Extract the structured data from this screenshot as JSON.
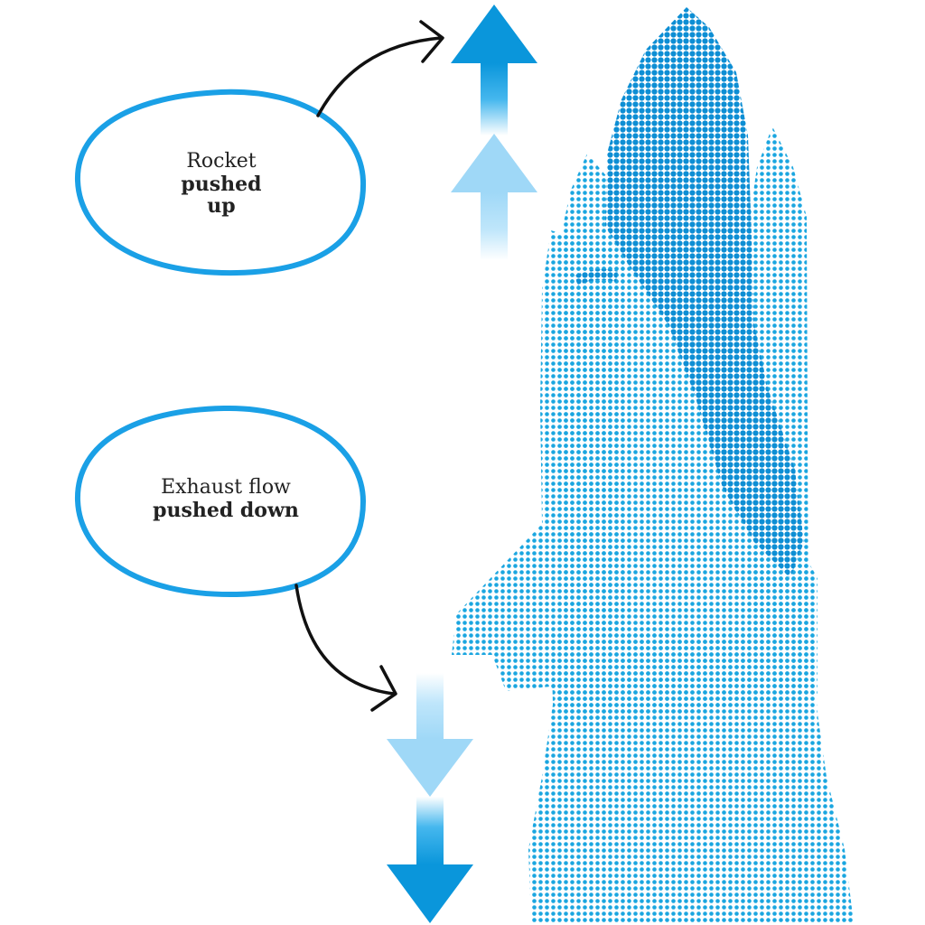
{
  "callouts": {
    "top": {
      "line1": "Rocket",
      "line2": "pushed",
      "line3": "up"
    },
    "bottom": {
      "line1": "Exhaust flow",
      "line2": "pushed down"
    }
  },
  "colors": {
    "rocket_dots": "#1ba6e0",
    "rocket_dark": "#0d8ed4",
    "bubble_outline": "#1aa0e6",
    "arrow_dark": "#0a96db",
    "arrow_light": "#9fd8f7",
    "connector": "#111111"
  },
  "icons": {
    "rocket": "space-shuttle-halftone",
    "up_arrows": "arrow-up",
    "down_arrows": "arrow-down"
  }
}
